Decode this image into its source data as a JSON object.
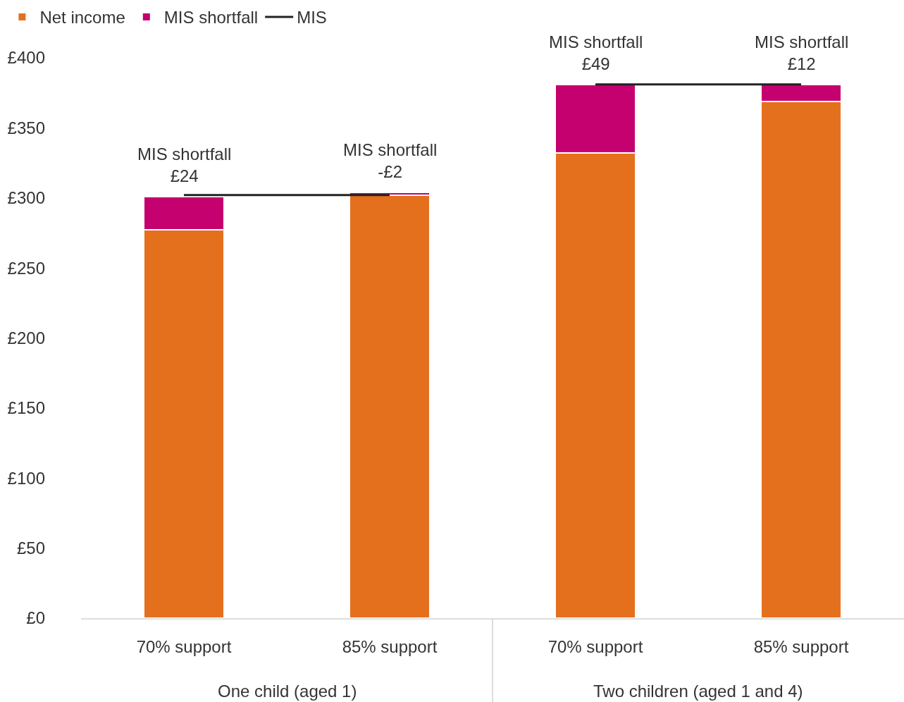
{
  "chart_data": {
    "type": "bar",
    "stacked": true,
    "categories": [
      "70% support",
      "85% support",
      "70% support",
      "85% support"
    ],
    "annotations": [
      "One child (aged 1)",
      "Two children (aged 1 and 4)"
    ],
    "series": [
      {
        "name": "Net income",
        "color": "#e4701e",
        "values": [
          277,
          302,
          332,
          369
        ]
      },
      {
        "name": "MIS shortfall",
        "color": "#c5006f",
        "base": [
          277,
          304,
          332,
          369
        ],
        "values": [
          24,
          -2,
          49,
          12
        ],
        "value_labels": [
          "MIS shortfall\n£24",
          "MIS shortfall\n-£2",
          "MIS shortfall\n£49",
          "MIS shortfall\n£12"
        ]
      },
      {
        "name": "MIS",
        "type": "line",
        "color": "#222222",
        "values": [
          302,
          302,
          null,
          null
        ]
      },
      {
        "type": "line",
        "color": "#222222",
        "values": [
          null,
          null,
          381,
          381
        ]
      }
    ],
    "ylim": [
      0,
      400
    ],
    "yticks": [
      {
        "value": 0,
        "label": "£0"
      },
      {
        "value": 50,
        "label": "£50"
      },
      {
        "value": 100,
        "label": "£100"
      },
      {
        "value": 150,
        "label": "£150"
      },
      {
        "value": 200,
        "label": "£200"
      },
      {
        "value": 250,
        "label": "£250"
      },
      {
        "value": 300,
        "label": "£300"
      },
      {
        "value": 350,
        "label": "£350"
      },
      {
        "value": 400,
        "label": "£400"
      }
    ],
    "grid": false,
    "legend": "top left",
    "marker": "none",
    "line_style": "solid"
  }
}
